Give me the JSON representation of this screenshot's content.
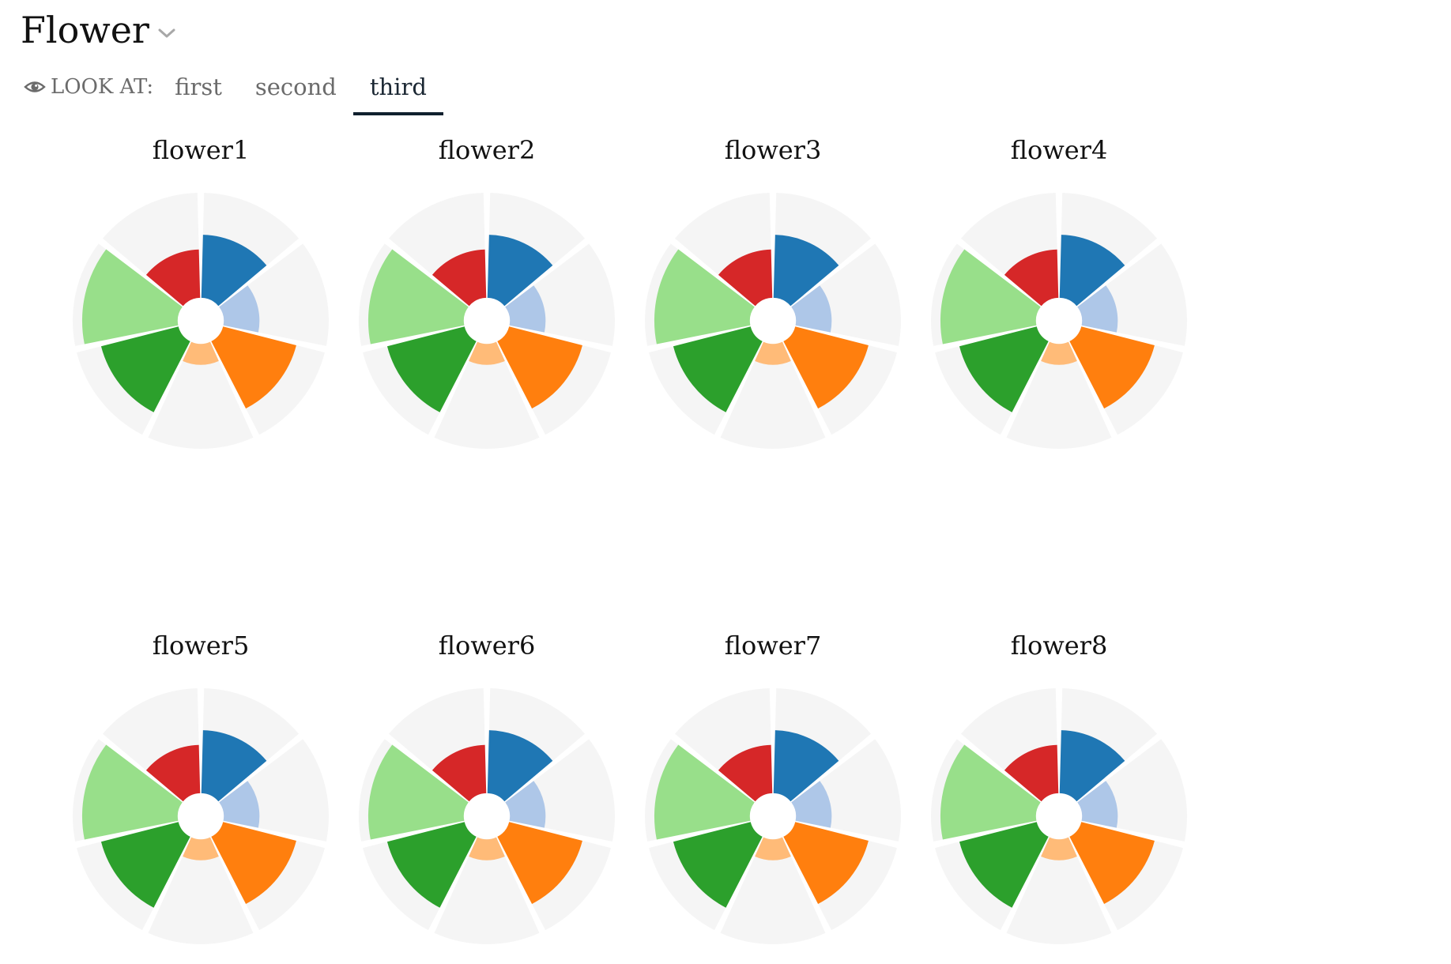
{
  "header": {
    "title": "Flower",
    "chevron_icon": "chevron-down-icon"
  },
  "look_at": {
    "label": "LOOK AT:",
    "icon": "eye-icon",
    "tabs": [
      {
        "label": "first",
        "active": false
      },
      {
        "label": "second",
        "active": false
      },
      {
        "label": "third",
        "active": true
      }
    ]
  },
  "chart_data": {
    "type": "polar-area",
    "background_color": "#f5f5f5",
    "inner_radius_ratio": 0.18,
    "petals": [
      {
        "color": "#1f77b4",
        "value": 0.6
      },
      {
        "color": "#aec7e8",
        "value": 0.34
      },
      {
        "color": "#ff7f0e",
        "value": 0.72
      },
      {
        "color": "#ffbb78",
        "value": 0.2
      },
      {
        "color": "#2ca02c",
        "value": 0.76
      },
      {
        "color": "#98df8a",
        "value": 0.91
      },
      {
        "color": "#d62728",
        "value": 0.46
      }
    ],
    "flowers": [
      {
        "name": "flower1"
      },
      {
        "name": "flower2"
      },
      {
        "name": "flower3"
      },
      {
        "name": "flower4"
      },
      {
        "name": "flower5"
      },
      {
        "name": "flower6"
      },
      {
        "name": "flower7"
      },
      {
        "name": "flower8"
      }
    ]
  }
}
